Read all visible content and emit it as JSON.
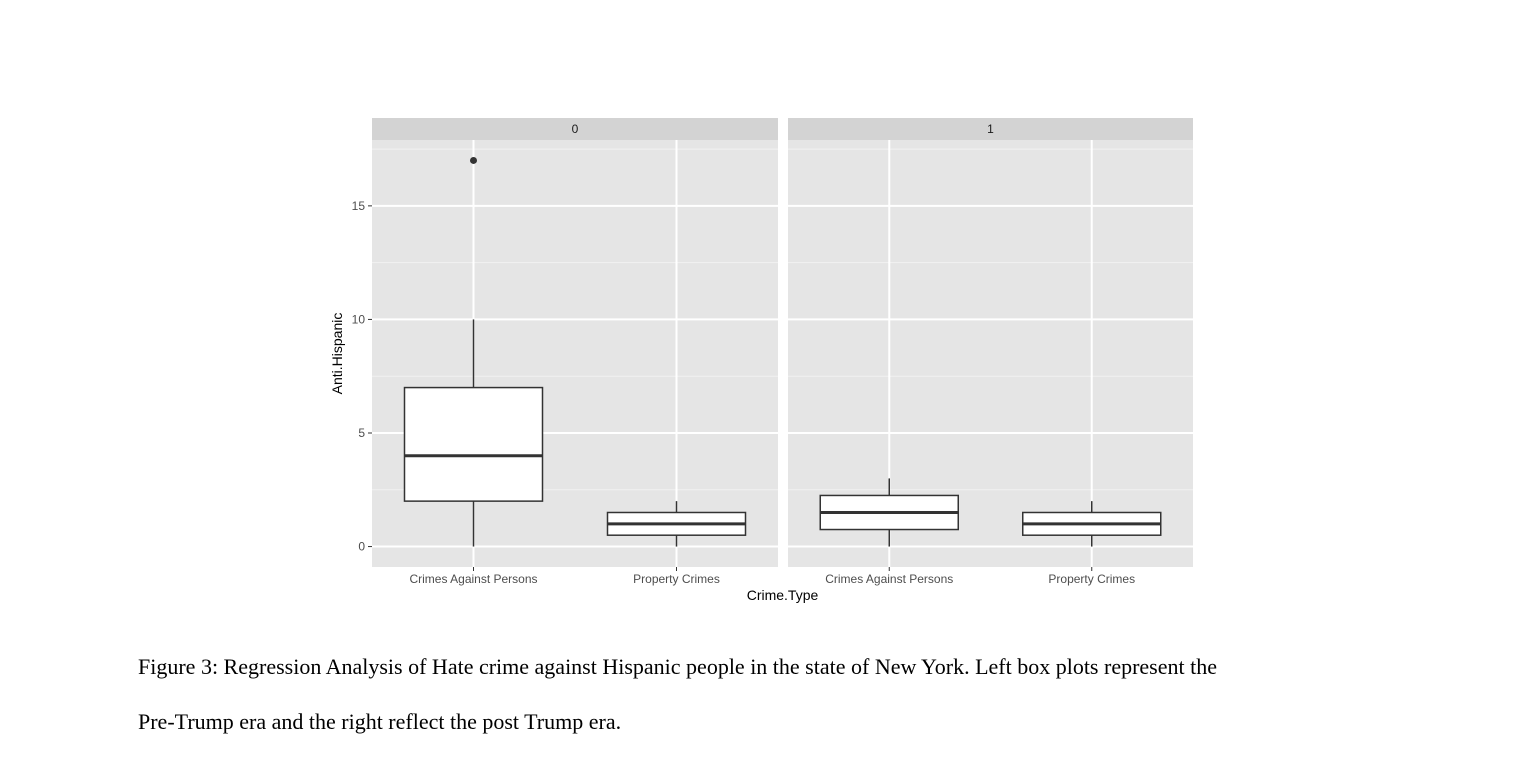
{
  "chart_data": {
    "type": "boxplot",
    "xlabel": "Crime.Type",
    "ylabel": "Anti.Hispanic",
    "ylim": [
      -0.9,
      17.9
    ],
    "y_ticks": [
      0,
      5,
      10,
      15
    ],
    "grid": true,
    "facet_variable_values": [
      "0",
      "1"
    ],
    "categories": [
      "Crimes Against Persons",
      "Property Crimes"
    ],
    "panels": [
      {
        "facet": "0",
        "boxes": [
          {
            "category": "Crimes Against Persons",
            "whisker_low": 0,
            "q1": 2,
            "median": 4,
            "q3": 7,
            "whisker_high": 10,
            "outliers": [
              17
            ]
          },
          {
            "category": "Property Crimes",
            "whisker_low": 0,
            "q1": 0.5,
            "median": 1,
            "q3": 1.5,
            "whisker_high": 2,
            "outliers": []
          }
        ]
      },
      {
        "facet": "1",
        "boxes": [
          {
            "category": "Crimes Against Persons",
            "whisker_low": 0,
            "q1": 0.75,
            "median": 1.5,
            "q3": 2.25,
            "whisker_high": 3,
            "outliers": []
          },
          {
            "category": "Property Crimes",
            "whisker_low": 0,
            "q1": 0.5,
            "median": 1,
            "q3": 1.5,
            "whisker_high": 2,
            "outliers": []
          }
        ]
      }
    ],
    "colors": {
      "panel_background": "#e5e5e5",
      "strip_background": "#d3d3d3",
      "grid_major": "#ffffff",
      "box_fill": "#ffffff",
      "box_line": "#333333",
      "tick_text": "#4d4d4d",
      "title_text": "#000000"
    }
  },
  "caption": {
    "line1": "Figure 3: Regression Analysis of Hate crime against Hispanic people in the state of New York. Left box plots represent the",
    "line2": "Pre-Trump era and the right reflect the post Trump era."
  }
}
